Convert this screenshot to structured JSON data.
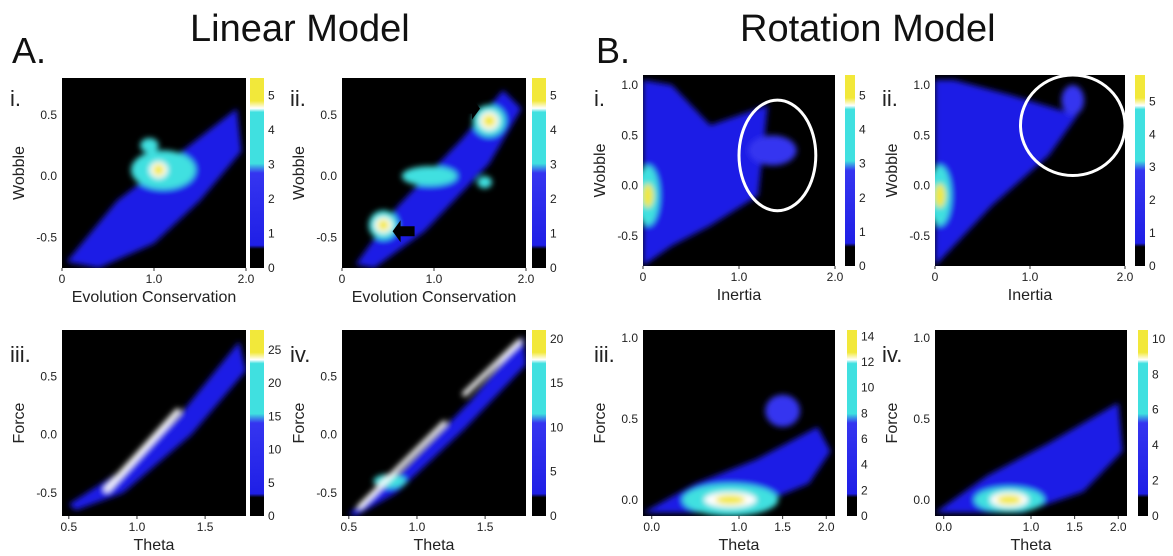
{
  "figure": {
    "section_a": {
      "letter": "A.",
      "title": "Linear Model"
    },
    "section_b": {
      "letter": "B.",
      "title": "Rotation Model"
    }
  },
  "colors": {
    "background": "#000000",
    "density_low": "#1f1fe6",
    "density_mid": "#3535f0",
    "density_high": "#40e0e0",
    "density_peak": "#f2e83a",
    "outline": "#ffffff"
  },
  "chart_data": [
    {
      "type": "heatmap",
      "panel": "A.i",
      "label": "i.",
      "xlabel": "Evolution Conservation",
      "ylabel": "Wobble",
      "xticks": [
        "0",
        "1.0",
        "2.0"
      ],
      "yticks": [
        "0.5",
        "0.0",
        "-0.5"
      ],
      "xlim": [
        0,
        2.0
      ],
      "ylim": [
        -0.75,
        0.8
      ],
      "colorbar": {
        "ticks": [
          "5",
          "4",
          "3",
          "2",
          "1",
          "0"
        ],
        "range": [
          0,
          5.5
        ]
      },
      "peaks": [
        {
          "x": 1.05,
          "y": 0.05,
          "value": 5
        }
      ]
    },
    {
      "type": "heatmap",
      "panel": "A.ii",
      "label": "ii.",
      "xlabel": "Evolution Conservation",
      "ylabel": "Wobble",
      "xticks": [
        "0",
        "1.0",
        "2.0"
      ],
      "yticks": [
        "0.5",
        "0.0",
        "-0.5"
      ],
      "xlim": [
        0,
        2.0
      ],
      "ylim": [
        -0.75,
        0.8
      ],
      "colorbar": {
        "ticks": [
          "5",
          "4",
          "3",
          "2",
          "1",
          "0"
        ],
        "range": [
          0,
          5.5
        ]
      },
      "peaks": [
        {
          "x": 1.6,
          "y": 0.45,
          "value": 4
        },
        {
          "x": 0.45,
          "y": -0.4,
          "value": 4
        }
      ],
      "annotations": [
        "arrow → upper peak",
        "arrow ← lower peak"
      ]
    },
    {
      "type": "heatmap",
      "panel": "A.iii",
      "label": "iii.",
      "xlabel": "Theta",
      "ylabel": "Force",
      "xticks": [
        "0.5",
        "1.0",
        "1.5"
      ],
      "yticks": [
        "0.5",
        "0.0",
        "-0.5"
      ],
      "xlim": [
        0.45,
        1.8
      ],
      "ylim": [
        -0.7,
        0.9
      ],
      "colorbar": {
        "ticks": [
          "25",
          "20",
          "15",
          "10",
          "5",
          "0"
        ],
        "range": [
          0,
          28
        ]
      },
      "ridge": {
        "from": [
          0.75,
          -0.45
        ],
        "to": [
          1.3,
          0.2
        ],
        "value": 25
      }
    },
    {
      "type": "heatmap",
      "panel": "A.iv",
      "label": "iv.",
      "xlabel": "Theta",
      "ylabel": "Force",
      "xticks": [
        "0.5",
        "1.0",
        "1.5"
      ],
      "yticks": [
        "0.5",
        "0.0",
        "-0.5"
      ],
      "xlim": [
        0.45,
        1.8
      ],
      "ylim": [
        -0.7,
        0.9
      ],
      "colorbar": {
        "ticks": [
          "20",
          "15",
          "10",
          "5",
          "0"
        ],
        "range": [
          0,
          21
        ]
      },
      "ridge": {
        "from": [
          0.55,
          -0.65
        ],
        "to": [
          1.75,
          0.8
        ],
        "value": 20
      }
    },
    {
      "type": "heatmap",
      "panel": "B.i",
      "label": "i.",
      "xlabel": "Inertia",
      "ylabel": "Wobble",
      "xticks": [
        "0",
        "1.0",
        "2.0"
      ],
      "yticks": [
        "1.0",
        "0.5",
        "0.0",
        "-0.5"
      ],
      "xlim": [
        0,
        2.0
      ],
      "ylim": [
        -0.8,
        1.1
      ],
      "colorbar": {
        "ticks": [
          "5",
          "4",
          "3",
          "2",
          "1",
          "0"
        ],
        "range": [
          0,
          5.6
        ]
      },
      "peaks": [
        {
          "x": 0.05,
          "y": -0.1,
          "value": 5
        }
      ],
      "annotations": [
        "circled region near Inertia 1.4, Wobble 0.3"
      ]
    },
    {
      "type": "heatmap",
      "panel": "B.ii",
      "label": "ii.",
      "xlabel": "Inertia",
      "ylabel": "Wobble",
      "xticks": [
        "0",
        "1.0",
        "2.0"
      ],
      "yticks": [
        "1.0",
        "0.5",
        "0.0",
        "-0.5"
      ],
      "xlim": [
        0,
        2.0
      ],
      "ylim": [
        -0.8,
        1.1
      ],
      "colorbar": {
        "ticks": [
          "5",
          "4",
          "3",
          "2",
          "1",
          "0"
        ],
        "range": [
          0,
          5.8
        ]
      },
      "peaks": [
        {
          "x": 0.05,
          "y": -0.1,
          "value": 5
        }
      ],
      "annotations": [
        "circled region near Inertia 1.4, Wobble 0.6"
      ]
    },
    {
      "type": "heatmap",
      "panel": "B.iii",
      "label": "iii.",
      "xlabel": "Theta",
      "ylabel": "Force",
      "xticks": [
        "0.0",
        "1.0",
        "1.5",
        "2.0"
      ],
      "yticks": [
        "1.0",
        "0.5",
        "0.0"
      ],
      "xlim": [
        -0.1,
        2.1
      ],
      "ylim": [
        -0.1,
        1.05
      ],
      "colorbar": {
        "ticks": [
          "14",
          "12",
          "10",
          "8",
          "6",
          "4",
          "2",
          "0"
        ],
        "range": [
          0,
          14.5
        ]
      },
      "peaks": [
        {
          "x": 0.9,
          "y": 0.0,
          "value": 14
        },
        {
          "x": 1.5,
          "y": 0.55,
          "value": 3
        }
      ]
    },
    {
      "type": "heatmap",
      "panel": "B.iv",
      "label": "iv.",
      "xlabel": "Theta",
      "ylabel": "Force",
      "xticks": [
        "0.0",
        "1.0",
        "1.5",
        "2.0"
      ],
      "yticks": [
        "1.0",
        "0.5",
        "0.0"
      ],
      "xlim": [
        -0.1,
        2.1
      ],
      "ylim": [
        -0.1,
        1.05
      ],
      "colorbar": {
        "ticks": [
          "10",
          "8",
          "6",
          "4",
          "2",
          "0"
        ],
        "range": [
          0,
          10.5
        ]
      },
      "peaks": [
        {
          "x": 0.75,
          "y": 0.0,
          "value": 10
        }
      ]
    }
  ]
}
